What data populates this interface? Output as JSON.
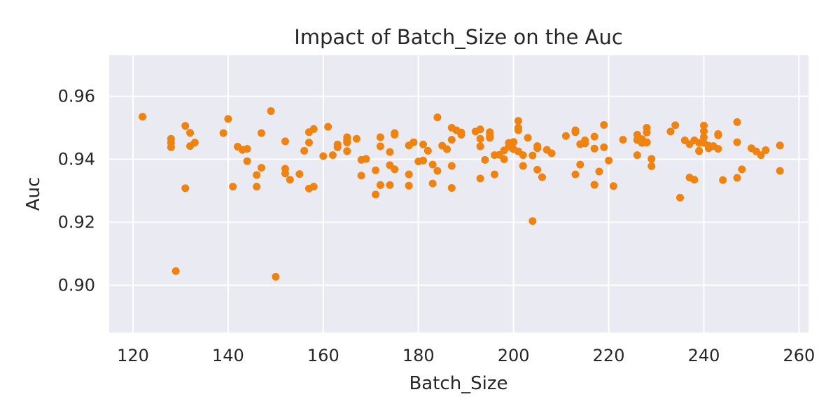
{
  "chart_data": {
    "type": "scatter",
    "title": "Impact of Batch_Size on the Auc",
    "xlabel": "Batch_Size",
    "ylabel": "Auc",
    "xlim": [
      115,
      262
    ],
    "ylim": [
      0.885,
      0.973
    ],
    "xticks": [
      120,
      140,
      160,
      180,
      200,
      220,
      240,
      260
    ],
    "yticks": [
      0.9,
      0.92,
      0.94,
      0.96
    ],
    "grid": true,
    "legend": "none",
    "colors": {
      "point": "#f0830f",
      "plot_background": "#eaeaf2",
      "grid": "#ffffff",
      "text": "#262626"
    },
    "series": [
      {
        "x": [
          122,
          128,
          128,
          128,
          129,
          131,
          131,
          132,
          132,
          133,
          139,
          140,
          141,
          142,
          143,
          144,
          144,
          146,
          146,
          147,
          147,
          149,
          150,
          152,
          152,
          152,
          153,
          155,
          156,
          157,
          157,
          157,
          158,
          158,
          160,
          161,
          162,
          163,
          163,
          165,
          165,
          165,
          165,
          167,
          168,
          168,
          169,
          171,
          171,
          172,
          172,
          172,
          172,
          174,
          174,
          174,
          175,
          175,
          175,
          178,
          178,
          178,
          179,
          180,
          181,
          181,
          182,
          183,
          183,
          184,
          184,
          185,
          186,
          187,
          187,
          187,
          187,
          188,
          189,
          189,
          192,
          193,
          193,
          193,
          193,
          194,
          195,
          195,
          195,
          196,
          196,
          197,
          198,
          198,
          199,
          199,
          200,
          200,
          201,
          201,
          201,
          201,
          202,
          202,
          203,
          204,
          204,
          205,
          205,
          205,
          206,
          207,
          208,
          211,
          213,
          213,
          213,
          214,
          214,
          215,
          215,
          217,
          217,
          217,
          217,
          218,
          219,
          219,
          220,
          221,
          223,
          226,
          226,
          226,
          226,
          227,
          227,
          228,
          228,
          228,
          228,
          229,
          229,
          233,
          234,
          235,
          236,
          237,
          237,
          238,
          238,
          239,
          239,
          239,
          240,
          240,
          240,
          240,
          241,
          241,
          242,
          243,
          243,
          243,
          244,
          247,
          247,
          247,
          248,
          250,
          251,
          252,
          253,
          256,
          256
        ],
        "y": [
          0.9535,
          0.9465,
          0.9452,
          0.9438,
          0.9045,
          0.9506,
          0.9308,
          0.9484,
          0.9442,
          0.9453,
          0.9483,
          0.9528,
          0.9313,
          0.944,
          0.943,
          0.9433,
          0.9394,
          0.935,
          0.9313,
          0.9483,
          0.9373,
          0.9553,
          0.9027,
          0.937,
          0.9355,
          0.9457,
          0.9335,
          0.9353,
          0.9427,
          0.9453,
          0.9486,
          0.9307,
          0.9496,
          0.9313,
          0.941,
          0.9503,
          0.9413,
          0.9438,
          0.9447,
          0.947,
          0.946,
          0.9453,
          0.9426,
          0.9465,
          0.9348,
          0.9398,
          0.9401,
          0.9365,
          0.9288,
          0.947,
          0.9441,
          0.9318,
          0.9318,
          0.9423,
          0.9381,
          0.9318,
          0.9483,
          0.9478,
          0.9368,
          0.9444,
          0.9352,
          0.9316,
          0.9454,
          0.9393,
          0.9447,
          0.9396,
          0.9427,
          0.9383,
          0.9323,
          0.9533,
          0.9363,
          0.9443,
          0.9432,
          0.95,
          0.9462,
          0.9379,
          0.9309,
          0.9492,
          0.9485,
          0.9478,
          0.9488,
          0.9495,
          0.9465,
          0.9441,
          0.9339,
          0.9398,
          0.9475,
          0.9486,
          0.9468,
          0.9413,
          0.9352,
          0.9414,
          0.94,
          0.9428,
          0.9452,
          0.944,
          0.9455,
          0.9432,
          0.9522,
          0.95,
          0.9492,
          0.9425,
          0.9413,
          0.9379,
          0.9468,
          0.9412,
          0.9204,
          0.9435,
          0.9442,
          0.9367,
          0.9343,
          0.943,
          0.9419,
          0.9474,
          0.9492,
          0.9486,
          0.9352,
          0.9448,
          0.9383,
          0.945,
          0.946,
          0.9472,
          0.9434,
          0.9319,
          0.9319,
          0.9361,
          0.9509,
          0.9438,
          0.9396,
          0.9315,
          0.9462,
          0.9478,
          0.9461,
          0.9462,
          0.9413,
          0.9464,
          0.9452,
          0.95,
          0.9485,
          0.9454,
          0.9453,
          0.9401,
          0.9378,
          0.9488,
          0.9508,
          0.9278,
          0.946,
          0.9448,
          0.9342,
          0.946,
          0.9335,
          0.9452,
          0.9427,
          0.9426,
          0.9507,
          0.9489,
          0.947,
          0.9452,
          0.9443,
          0.9435,
          0.9442,
          0.9433,
          0.948,
          0.9476,
          0.9334,
          0.9518,
          0.9454,
          0.9341,
          0.9368,
          0.9435,
          0.9425,
          0.9413,
          0.9429,
          0.9444,
          0.9363
        ]
      }
    ]
  }
}
